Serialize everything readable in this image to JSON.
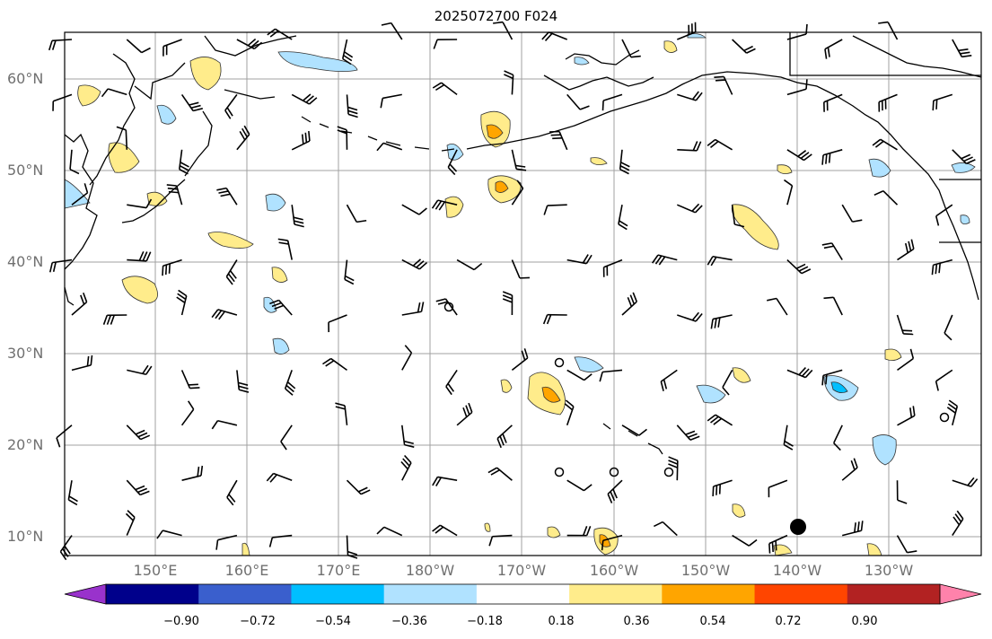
{
  "title": "2025072700 F024",
  "lat_labels": [
    "60°N",
    "50°N",
    "40°N",
    "30°N",
    "20°N",
    "10°N"
  ],
  "lon_labels": [
    "150°E",
    "160°E",
    "170°E",
    "180°W",
    "170°W",
    "160°W",
    "150°W",
    "140°W",
    "130°W"
  ],
  "colorbar": {
    "ticks": [
      "−0.90",
      "−0.72",
      "−0.54",
      "−0.36",
      "−0.18",
      "0.18",
      "0.36",
      "0.54",
      "0.72",
      "0.90"
    ],
    "colors": [
      "#9932cc",
      "#00008b",
      "#3a5fcd",
      "#00bfff",
      "#b0e2ff",
      "#ffffff",
      "#ffec8b",
      "#ffa500",
      "#ff4500",
      "#b22222",
      "#ff82ab"
    ]
  }
}
